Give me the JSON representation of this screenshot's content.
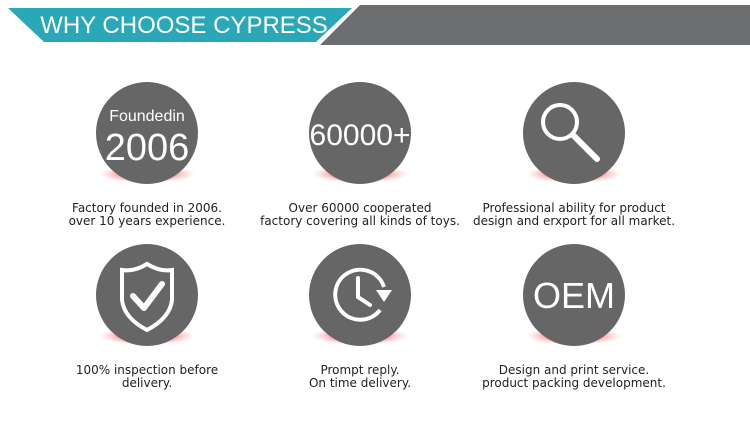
{
  "header": {
    "title": "WHY CHOOSE CYPRESS"
  },
  "items": [
    {
      "circle_lines": [
        "Foundedin",
        "2006"
      ],
      "caption": [
        "Factory founded in 2006.",
        "over 10 years experience."
      ]
    },
    {
      "circle_lines": [
        "60000+"
      ],
      "caption": [
        "Over 60000 cooperated",
        "factory covering all kinds of toys."
      ]
    },
    {
      "caption": [
        "Professional ability for product",
        "design and erxport for all market."
      ]
    },
    {
      "caption": [
        "100% inspection before",
        "delivery."
      ]
    },
    {
      "caption": [
        "Prompt reply.",
        "On time delivery."
      ]
    },
    {
      "circle_lines": [
        "OEM"
      ],
      "caption": [
        "Design and print service.",
        "product packing development."
      ]
    }
  ]
}
